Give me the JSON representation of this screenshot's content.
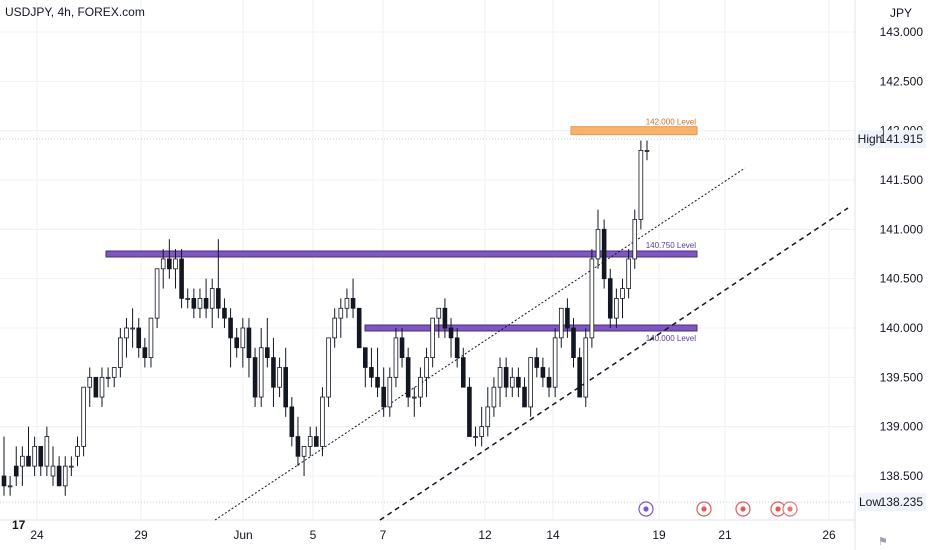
{
  "header": {
    "title": "USDJPY, 4h, FOREX.com"
  },
  "footer": {
    "brand_glyph": "17",
    "symbol_glyph": "⚑"
  },
  "colors": {
    "up_body": "#ffffff",
    "down_body": "#131722",
    "wick": "#131722",
    "resistance_band": "#7e57c2",
    "resistance_border": "#4a2f7a",
    "orange_band": "#f7b26b",
    "orange_label": "#d86b1f",
    "level_label": "#5b3aa0",
    "grid": "#eef0f4"
  },
  "chart_data": {
    "type": "candlestick",
    "symbol": "USDJPY",
    "timeframe": "4h",
    "y_axis": {
      "currency_label": "JPY",
      "range": [
        138.1,
        143.05
      ],
      "ticks": [
        "143.000",
        "142.500",
        "142.000",
        "141.500",
        "141.000",
        "140.500",
        "140.000",
        "139.500",
        "139.000",
        "138.500"
      ],
      "tick_values": [
        143.0,
        142.5,
        142.0,
        141.5,
        141.0,
        140.5,
        140.0,
        139.5,
        139.0,
        138.5
      ]
    },
    "x_axis": {
      "ticks": [
        "24",
        "29",
        "Jun",
        "5",
        "7",
        "12",
        "14",
        "19",
        "21",
        "26"
      ]
    },
    "high_label": {
      "text": "High",
      "value": "141.915",
      "price": 141.915
    },
    "low_label": {
      "text": "Low",
      "value": "138.235",
      "price": 138.235
    },
    "levels": [
      {
        "label": "142.000 Level",
        "price": 142.0,
        "style": "orange"
      },
      {
        "label": "140.750 Level",
        "price": 140.75,
        "style": "purple"
      },
      {
        "label": "140.000 Level",
        "price": 140.0,
        "style": "purple"
      }
    ],
    "candles": [
      [
        138.5,
        138.9,
        138.3,
        138.4
      ],
      [
        138.4,
        138.5,
        138.3,
        138.4
      ],
      [
        138.6,
        138.8,
        138.4,
        138.5
      ],
      [
        138.6,
        138.8,
        138.4,
        138.7
      ],
      [
        138.7,
        139.0,
        138.6,
        138.6
      ],
      [
        138.6,
        138.9,
        138.5,
        138.8
      ],
      [
        138.8,
        138.8,
        138.5,
        138.6
      ],
      [
        138.6,
        139.0,
        138.5,
        138.9
      ],
      [
        138.5,
        138.8,
        138.4,
        138.6
      ],
      [
        138.6,
        138.7,
        138.4,
        138.4
      ],
      [
        138.4,
        138.7,
        138.3,
        138.6
      ],
      [
        138.6,
        138.7,
        138.5,
        138.6
      ],
      [
        138.7,
        138.9,
        138.6,
        138.8
      ],
      [
        138.8,
        139.4,
        138.7,
        139.4
      ],
      [
        139.4,
        139.6,
        139.2,
        139.5
      ],
      [
        139.5,
        139.5,
        139.3,
        139.3
      ],
      [
        139.3,
        139.6,
        139.2,
        139.5
      ],
      [
        139.5,
        139.6,
        139.4,
        139.5
      ],
      [
        139.5,
        139.6,
        139.4,
        139.6
      ],
      [
        139.6,
        140.0,
        139.5,
        139.9
      ],
      [
        139.9,
        140.1,
        139.7,
        140.0
      ],
      [
        140.0,
        140.2,
        139.8,
        140.0
      ],
      [
        140.0,
        140.1,
        139.7,
        139.8
      ],
      [
        139.8,
        139.9,
        139.6,
        139.7
      ],
      [
        139.7,
        140.1,
        139.6,
        140.1
      ],
      [
        140.1,
        140.6,
        140.0,
        140.6
      ],
      [
        140.6,
        140.8,
        140.4,
        140.7
      ],
      [
        140.7,
        140.9,
        140.5,
        140.6
      ],
      [
        140.6,
        140.8,
        140.4,
        140.7
      ],
      [
        140.7,
        140.8,
        140.2,
        140.3
      ],
      [
        140.3,
        140.4,
        140.2,
        140.3
      ],
      [
        140.3,
        140.4,
        140.1,
        140.2
      ],
      [
        140.2,
        140.4,
        140.1,
        140.3
      ],
      [
        140.3,
        140.5,
        140.1,
        140.2
      ],
      [
        140.2,
        140.5,
        140.0,
        140.4
      ],
      [
        140.4,
        140.9,
        140.1,
        140.2
      ],
      [
        140.2,
        140.3,
        140.0,
        140.1
      ],
      [
        140.1,
        140.2,
        139.6,
        139.9
      ],
      [
        139.9,
        140.0,
        139.7,
        139.8
      ],
      [
        139.8,
        140.1,
        139.6,
        140.0
      ],
      [
        140.0,
        140.1,
        139.5,
        139.7
      ],
      [
        139.7,
        139.8,
        139.2,
        139.3
      ],
      [
        139.3,
        140.0,
        139.2,
        139.8
      ],
      [
        139.8,
        140.1,
        139.6,
        139.7
      ],
      [
        139.7,
        139.9,
        139.2,
        139.4
      ],
      [
        139.4,
        139.7,
        139.3,
        139.6
      ],
      [
        139.6,
        139.8,
        139.1,
        139.2
      ],
      [
        139.2,
        139.3,
        138.8,
        138.9
      ],
      [
        138.9,
        139.1,
        138.6,
        138.7
      ],
      [
        138.7,
        138.8,
        138.5,
        138.8
      ],
      [
        138.8,
        139.0,
        138.7,
        138.9
      ],
      [
        138.9,
        139.0,
        138.8,
        138.8
      ],
      [
        138.8,
        139.4,
        138.7,
        139.3
      ],
      [
        139.3,
        139.9,
        139.2,
        139.9
      ],
      [
        139.9,
        140.2,
        139.8,
        140.1
      ],
      [
        140.1,
        140.3,
        139.9,
        140.2
      ],
      [
        140.2,
        140.4,
        140.1,
        140.3
      ],
      [
        140.3,
        140.5,
        140.1,
        140.2
      ],
      [
        140.2,
        140.2,
        139.8,
        139.8
      ],
      [
        139.8,
        139.8,
        139.4,
        139.6
      ],
      [
        139.6,
        139.8,
        139.4,
        139.5
      ],
      [
        139.5,
        139.8,
        139.3,
        139.4
      ],
      [
        139.4,
        139.6,
        139.1,
        139.2
      ],
      [
        139.2,
        139.6,
        139.1,
        139.5
      ],
      [
        139.5,
        140.0,
        139.4,
        139.9
      ],
      [
        139.9,
        140.0,
        139.6,
        139.7
      ],
      [
        139.7,
        139.8,
        139.2,
        139.3
      ],
      [
        139.3,
        139.4,
        139.1,
        139.3
      ],
      [
        139.3,
        139.6,
        139.2,
        139.5
      ],
      [
        139.5,
        139.8,
        139.3,
        139.7
      ],
      [
        139.7,
        140.1,
        139.6,
        140.1
      ],
      [
        140.1,
        140.2,
        139.9,
        140.2
      ],
      [
        140.2,
        140.3,
        139.9,
        140.0
      ],
      [
        140.0,
        140.1,
        139.7,
        139.9
      ],
      [
        139.9,
        140.0,
        139.6,
        139.7
      ],
      [
        139.7,
        139.8,
        139.4,
        139.4
      ],
      [
        139.4,
        139.5,
        138.9,
        138.9
      ],
      [
        138.9,
        139.0,
        138.8,
        138.9
      ],
      [
        138.9,
        139.2,
        138.8,
        139.0
      ],
      [
        139.0,
        139.4,
        138.9,
        139.2
      ],
      [
        139.2,
        139.5,
        139.1,
        139.4
      ],
      [
        139.4,
        139.7,
        139.2,
        139.6
      ],
      [
        139.6,
        139.7,
        139.3,
        139.4
      ],
      [
        139.4,
        139.6,
        139.3,
        139.5
      ],
      [
        139.5,
        139.6,
        139.3,
        139.4
      ],
      [
        139.4,
        139.5,
        139.2,
        139.2
      ],
      [
        139.2,
        139.7,
        139.1,
        139.7
      ],
      [
        139.7,
        139.8,
        139.5,
        139.6
      ],
      [
        139.6,
        139.7,
        139.4,
        139.5
      ],
      [
        139.5,
        139.6,
        139.3,
        139.4
      ],
      [
        139.4,
        140.0,
        139.3,
        139.9
      ],
      [
        139.9,
        140.2,
        139.8,
        140.2
      ],
      [
        140.2,
        140.3,
        139.9,
        140.0
      ],
      [
        140.0,
        140.1,
        139.6,
        139.7
      ],
      [
        139.7,
        139.8,
        139.3,
        139.3
      ],
      [
        139.3,
        140.0,
        139.2,
        139.9
      ],
      [
        139.9,
        140.8,
        139.8,
        140.7
      ],
      [
        140.7,
        141.2,
        140.6,
        141.0
      ],
      [
        141.0,
        141.1,
        140.4,
        140.5
      ],
      [
        140.5,
        140.6,
        140.0,
        140.1
      ],
      [
        140.1,
        140.4,
        140.0,
        140.3
      ],
      [
        140.3,
        140.5,
        140.1,
        140.4
      ],
      [
        140.4,
        140.8,
        140.3,
        140.7
      ],
      [
        140.7,
        141.2,
        140.6,
        141.1
      ],
      [
        141.1,
        141.9,
        141.0,
        141.8
      ],
      [
        141.8,
        141.9,
        141.7,
        141.8
      ]
    ]
  }
}
